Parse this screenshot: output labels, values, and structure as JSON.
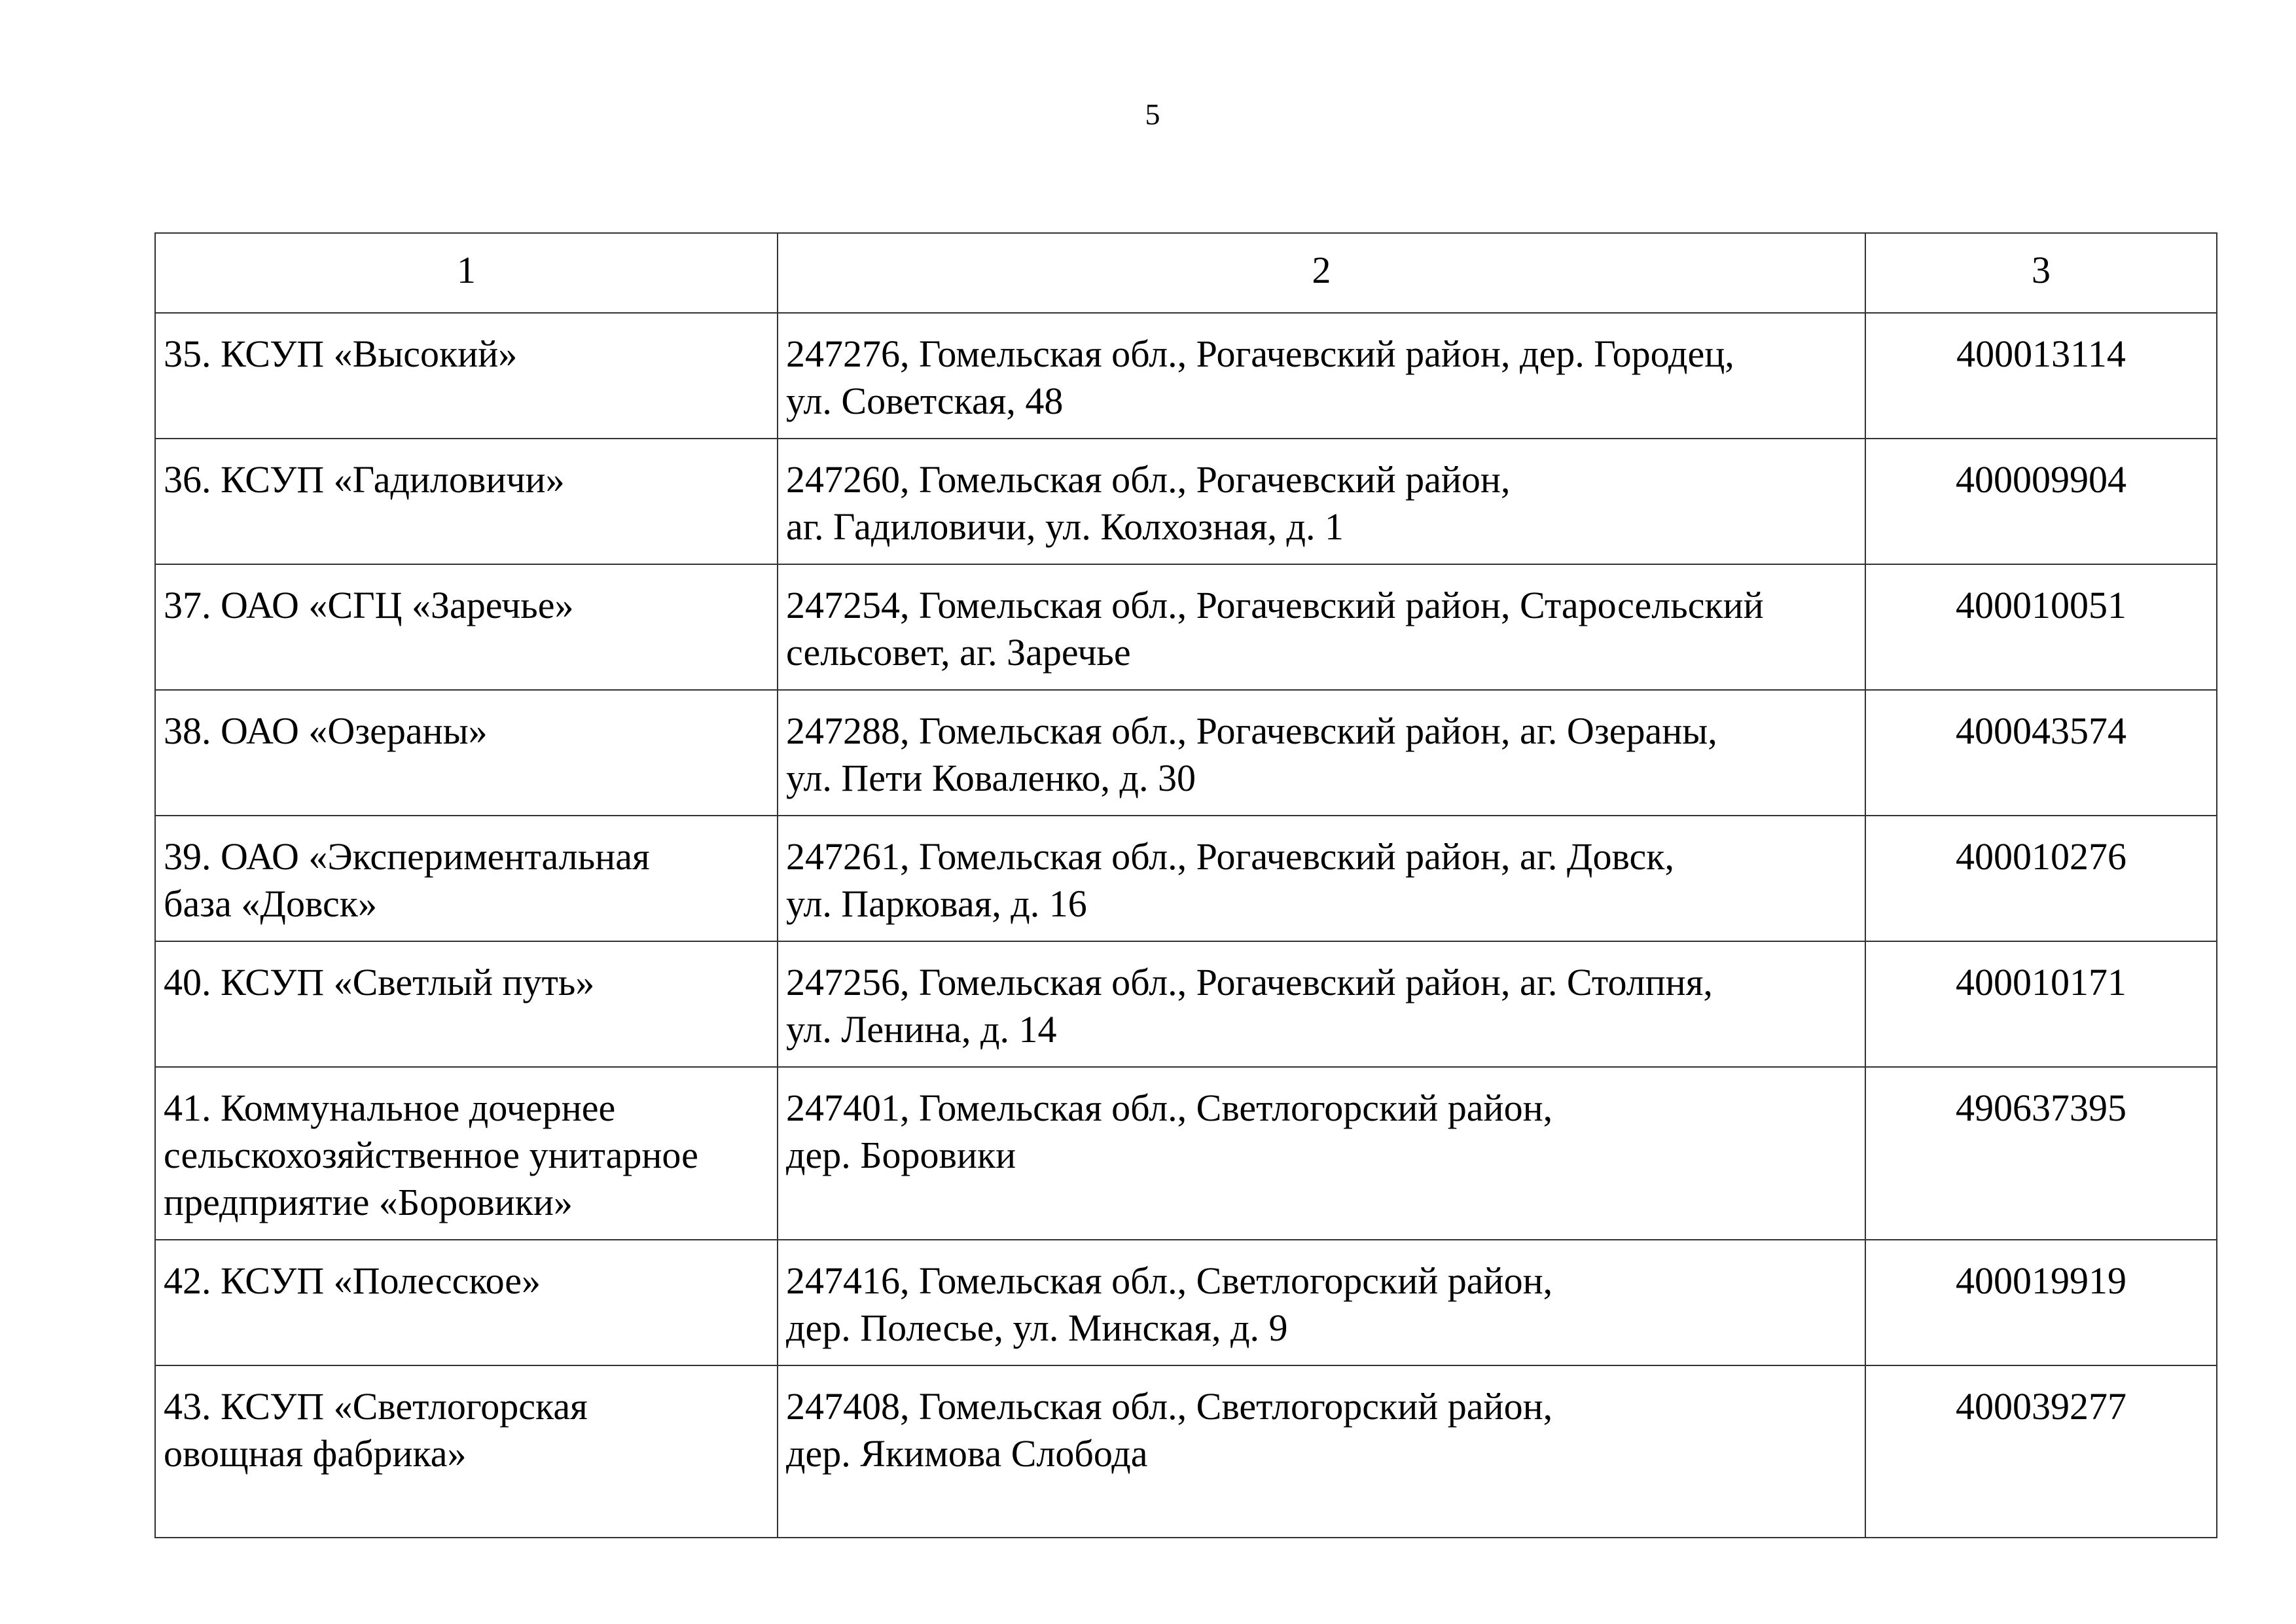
{
  "page_number": "5",
  "table": {
    "header": [
      "1",
      "2",
      "3"
    ],
    "rows": [
      {
        "name": [
          "35. КСУП «Высокий»"
        ],
        "address": [
          "247276, Гомельская обл., Рогачевский район, дер. Городец,",
          "ул. Советская, 48"
        ],
        "code": "400013114"
      },
      {
        "name": [
          "36. КСУП «Гадиловичи»"
        ],
        "address": [
          "247260, Гомельская обл., Рогачевский район,",
          "аг. Гадиловичи, ул. Колхозная, д. 1"
        ],
        "code": "400009904"
      },
      {
        "name": [
          "37. ОАО «СГЦ «Заречье»"
        ],
        "address": [
          "247254, Гомельская обл., Рогачевский район, Старосельский",
          "сельсовет, аг. Заречье"
        ],
        "code": "400010051"
      },
      {
        "name": [
          "38. ОАО «Озераны»"
        ],
        "address": [
          "247288, Гомельская обл., Рогачевский район, аг. Озераны,",
          "ул. Пети Коваленко, д. 30"
        ],
        "code": "400043574"
      },
      {
        "name": [
          "39. ОАО «Экспериментальная",
          "база «Довск»"
        ],
        "address": [
          "247261, Гомельская обл., Рогачевский район, аг. Довск,",
          "ул. Парковая, д. 16"
        ],
        "code": "400010276"
      },
      {
        "name": [
          "40. КСУП «Светлый путь»"
        ],
        "address": [
          "247256, Гомельская обл., Рогачевский район, аг. Столпня,",
          "ул. Ленина, д. 14"
        ],
        "code": "400010171"
      },
      {
        "name": [
          "41. Коммунальное дочернее",
          "сельскохозяйственное унитарное",
          "предприятие «Боровики»"
        ],
        "address": [
          "247401, Гомельская обл., Светлогорский район,",
          "дер. Боровики"
        ],
        "code": "490637395"
      },
      {
        "name": [
          "42. КСУП «Полесское»"
        ],
        "address": [
          "247416, Гомельская обл., Светлогорский район,",
          "дер. Полесье, ул. Минская, д. 9"
        ],
        "code": "400019919"
      },
      {
        "name": [
          "43. КСУП «Светлогорская",
          "овощная фабрика»"
        ],
        "address": [
          "247408, Гомельская обл., Светлогорский район,",
          "дер. Якимова Слобода"
        ],
        "code": "400039277"
      }
    ]
  }
}
